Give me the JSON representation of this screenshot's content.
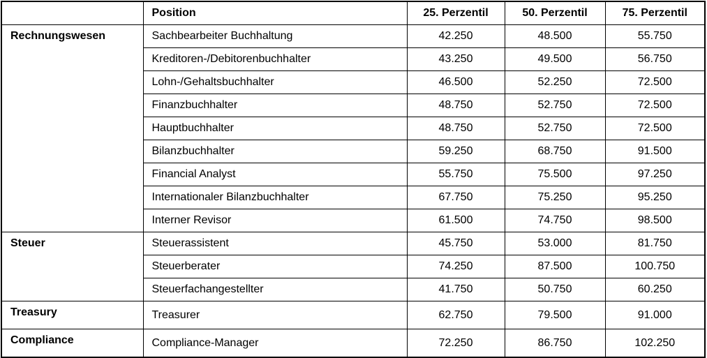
{
  "table": {
    "headers": {
      "category": "",
      "position": "Position",
      "p25": "25. Perzentil",
      "p50": "50. Perzentil",
      "p75": "75. Perzentil"
    },
    "groups": [
      {
        "category": "Rechnungswesen",
        "rows": [
          {
            "position": "Sachbearbeiter Buchhaltung",
            "p25": "42.250",
            "p50": "48.500",
            "p75": "55.750"
          },
          {
            "position": "Kreditoren-/Debitorenbuchhalter",
            "p25": "43.250",
            "p50": "49.500",
            "p75": "56.750"
          },
          {
            "position": "Lohn-/Gehaltsbuchhalter",
            "p25": "46.500",
            "p50": "52.250",
            "p75": "72.500"
          },
          {
            "position": "Finanzbuchhalter",
            "p25": "48.750",
            "p50": "52.750",
            "p75": "72.500"
          },
          {
            "position": "Hauptbuchhalter",
            "p25": "48.750",
            "p50": "52.750",
            "p75": "72.500"
          },
          {
            "position": "Bilanzbuchhalter",
            "p25": "59.250",
            "p50": "68.750",
            "p75": "91.500"
          },
          {
            "position": "Financial Analyst",
            "p25": "55.750",
            "p50": "75.500",
            "p75": "97.250"
          },
          {
            "position": "Internationaler Bilanzbuchhalter",
            "p25": "67.750",
            "p50": "75.250",
            "p75": "95.250"
          },
          {
            "position": "Interner Revisor",
            "p25": "61.500",
            "p50": "74.750",
            "p75": "98.500"
          }
        ]
      },
      {
        "category": "Steuer",
        "rows": [
          {
            "position": "Steuerassistent",
            "p25": "45.750",
            "p50": "53.000",
            "p75": "81.750"
          },
          {
            "position": "Steuerberater",
            "p25": "74.250",
            "p50": "87.500",
            "p75": "100.750"
          },
          {
            "position": "Steuerfachangestellter",
            "p25": "41.750",
            "p50": "50.750",
            "p75": "60.250"
          }
        ]
      },
      {
        "category": "Treasury",
        "rows": [
          {
            "position": "Treasurer",
            "p25": "62.750",
            "p50": "79.500",
            "p75": "91.000"
          }
        ]
      },
      {
        "category": "Compliance",
        "rows": [
          {
            "position": "Compliance-Manager",
            "p25": "72.250",
            "p50": "86.750",
            "p75": "102.250"
          }
        ]
      }
    ],
    "colors": {
      "grid": "#000000",
      "text": "#000000",
      "background": "#ffffff"
    }
  }
}
